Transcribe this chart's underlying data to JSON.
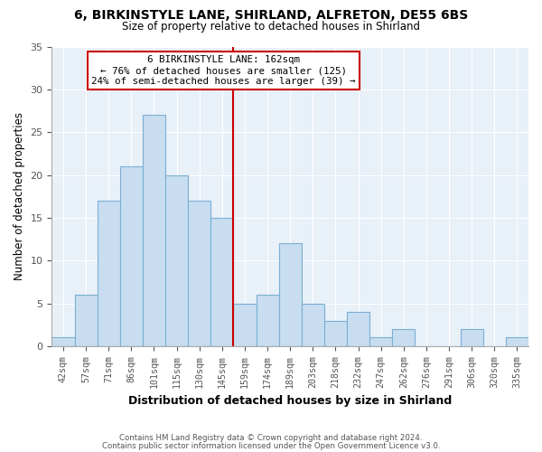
{
  "title": "6, BIRKINSTYLE LANE, SHIRLAND, ALFRETON, DE55 6BS",
  "subtitle": "Size of property relative to detached houses in Shirland",
  "xlabel": "Distribution of detached houses by size in Shirland",
  "ylabel": "Number of detached properties",
  "bar_labels": [
    "42sqm",
    "57sqm",
    "71sqm",
    "86sqm",
    "101sqm",
    "115sqm",
    "130sqm",
    "145sqm",
    "159sqm",
    "174sqm",
    "189sqm",
    "203sqm",
    "218sqm",
    "232sqm",
    "247sqm",
    "262sqm",
    "276sqm",
    "291sqm",
    "306sqm",
    "320sqm",
    "335sqm"
  ],
  "bar_heights": [
    1,
    6,
    17,
    21,
    27,
    20,
    17,
    15,
    5,
    6,
    12,
    5,
    3,
    4,
    1,
    2,
    0,
    0,
    2,
    0,
    1
  ],
  "bar_color": "#c8ddf0",
  "bar_edgecolor": "#7bafd4",
  "vline_color": "#cc0000",
  "annotation_title": "6 BIRKINSTYLE LANE: 162sqm",
  "annotation_line1": "← 76% of detached houses are smaller (125)",
  "annotation_line2": "24% of semi-detached houses are larger (39) →",
  "annotation_box_edgecolor": "#cc0000",
  "ylim": [
    0,
    35
  ],
  "yticks": [
    0,
    5,
    10,
    15,
    20,
    25,
    30,
    35
  ],
  "footer1": "Contains HM Land Registry data © Crown copyright and database right 2024.",
  "footer2": "Contains public sector information licensed under the Open Government Licence v3.0.",
  "background_color": "#ffffff",
  "plot_bg_color": "#e8f0f8",
  "grid_color": "#ffffff"
}
